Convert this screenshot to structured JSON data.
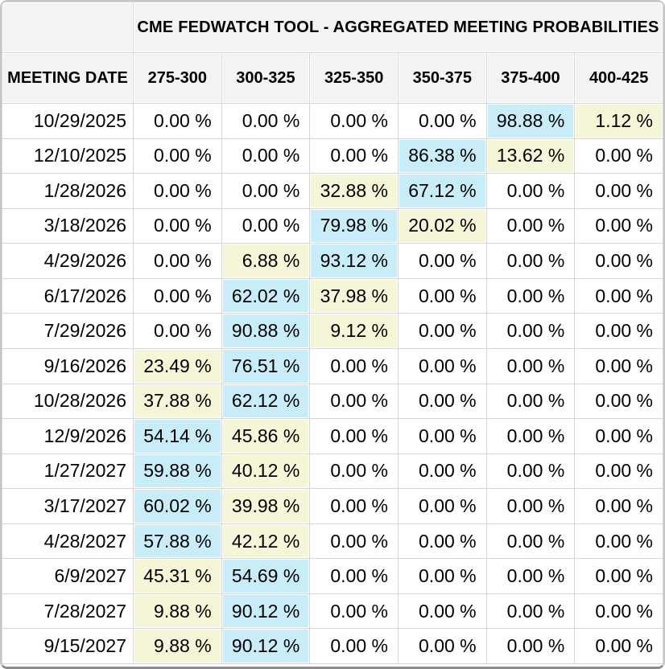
{
  "header": {
    "title": "CME FEDWATCH TOOL - AGGREGATED MEETING PROBABILITIES",
    "meeting_date_label": "MEETING DATE"
  },
  "colors": {
    "highlight_top": "#c8edf8",
    "highlight_second": "#f5f5d7",
    "header_bg": "#f3f3f3",
    "grid_line": "#d6d6d6"
  },
  "chart_data": {
    "type": "table",
    "title": "CME FEDWATCH TOOL - AGGREGATED MEETING PROBABILITIES",
    "row_header": "MEETING DATE",
    "columns": [
      "275-300",
      "300-325",
      "325-350",
      "350-375",
      "375-400",
      "400-425"
    ],
    "unit": "%",
    "value_format": "0.00 %",
    "highlight_rules": {
      "blue": "highest probability in row",
      "yellow": "second-highest non-zero probability in row"
    },
    "rows": [
      {
        "date": "10/29/2025",
        "values": [
          0.0,
          0.0,
          0.0,
          0.0,
          98.88,
          1.12
        ]
      },
      {
        "date": "12/10/2025",
        "values": [
          0.0,
          0.0,
          0.0,
          86.38,
          13.62,
          0.0
        ]
      },
      {
        "date": "1/28/2026",
        "values": [
          0.0,
          0.0,
          32.88,
          67.12,
          0.0,
          0.0
        ]
      },
      {
        "date": "3/18/2026",
        "values": [
          0.0,
          0.0,
          79.98,
          20.02,
          0.0,
          0.0
        ]
      },
      {
        "date": "4/29/2026",
        "values": [
          0.0,
          6.88,
          93.12,
          0.0,
          0.0,
          0.0
        ]
      },
      {
        "date": "6/17/2026",
        "values": [
          0.0,
          62.02,
          37.98,
          0.0,
          0.0,
          0.0
        ]
      },
      {
        "date": "7/29/2026",
        "values": [
          0.0,
          90.88,
          9.12,
          0.0,
          0.0,
          0.0
        ]
      },
      {
        "date": "9/16/2026",
        "values": [
          23.49,
          76.51,
          0.0,
          0.0,
          0.0,
          0.0
        ]
      },
      {
        "date": "10/28/2026",
        "values": [
          37.88,
          62.12,
          0.0,
          0.0,
          0.0,
          0.0
        ]
      },
      {
        "date": "12/9/2026",
        "values": [
          54.14,
          45.86,
          0.0,
          0.0,
          0.0,
          0.0
        ]
      },
      {
        "date": "1/27/2027",
        "values": [
          59.88,
          40.12,
          0.0,
          0.0,
          0.0,
          0.0
        ]
      },
      {
        "date": "3/17/2027",
        "values": [
          60.02,
          39.98,
          0.0,
          0.0,
          0.0,
          0.0
        ]
      },
      {
        "date": "4/28/2027",
        "values": [
          57.88,
          42.12,
          0.0,
          0.0,
          0.0,
          0.0
        ]
      },
      {
        "date": "6/9/2027",
        "values": [
          45.31,
          54.69,
          0.0,
          0.0,
          0.0,
          0.0
        ]
      },
      {
        "date": "7/28/2027",
        "values": [
          9.88,
          90.12,
          0.0,
          0.0,
          0.0,
          0.0
        ]
      },
      {
        "date": "9/15/2027",
        "values": [
          9.88,
          90.12,
          0.0,
          0.0,
          0.0,
          0.0
        ]
      }
    ]
  }
}
